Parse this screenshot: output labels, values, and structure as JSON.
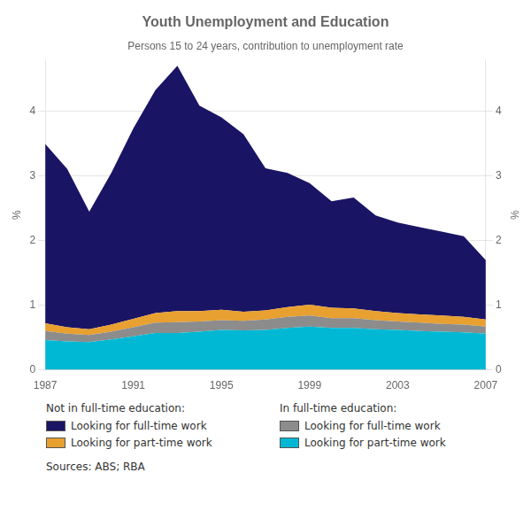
{
  "chart_data": {
    "type": "area",
    "title": "Youth Unemployment and Education",
    "subtitle": "Persons 15 to 24 years, contribution to unemployment rate",
    "ylabel": "%",
    "y2label": "%",
    "source": "Sources: ABS; RBA",
    "x": [
      1987,
      1988,
      1989,
      1990,
      1991,
      1992,
      1993,
      1994,
      1995,
      1996,
      1997,
      1998,
      1999,
      2000,
      2001,
      2002,
      2003,
      2004,
      2005,
      2006,
      2007
    ],
    "xlim": [
      1987,
      2007
    ],
    "xticks": [
      1987,
      1991,
      1995,
      1999,
      2003,
      2007
    ],
    "ylim": [
      0,
      4.8
    ],
    "yticks": [
      0,
      1,
      2,
      3,
      4
    ],
    "y2lim": [
      0,
      4.8
    ],
    "y2ticks": [
      0,
      1,
      2,
      3,
      4
    ],
    "stacked": true,
    "grid": true,
    "legend": "bottom",
    "series": [
      {
        "name": "Looking for part-time work",
        "group": "In full-time education:",
        "color": "#00b8d4",
        "values": [
          0.46,
          0.44,
          0.43,
          0.47,
          0.52,
          0.57,
          0.57,
          0.59,
          0.62,
          0.61,
          0.62,
          0.65,
          0.67,
          0.65,
          0.65,
          0.63,
          0.62,
          0.6,
          0.59,
          0.58,
          0.56
        ]
      },
      {
        "name": "Looking for full-time work",
        "group": "In full-time education:",
        "color": "#8c8c8c",
        "values": [
          0.14,
          0.12,
          0.11,
          0.12,
          0.14,
          0.16,
          0.17,
          0.16,
          0.15,
          0.15,
          0.16,
          0.17,
          0.17,
          0.15,
          0.15,
          0.14,
          0.13,
          0.13,
          0.12,
          0.12,
          0.11
        ]
      },
      {
        "name": "Looking for part-time work",
        "group": "Not in full-time education:",
        "color": "#e8a030",
        "values": [
          0.12,
          0.1,
          0.09,
          0.11,
          0.13,
          0.15,
          0.17,
          0.16,
          0.16,
          0.14,
          0.14,
          0.15,
          0.17,
          0.16,
          0.15,
          0.14,
          0.13,
          0.13,
          0.13,
          0.12,
          0.11
        ]
      },
      {
        "name": "Looking for full-time work",
        "group": "Not in full-time education:",
        "color": "#1a1464",
        "values": [
          2.78,
          2.45,
          1.82,
          2.35,
          2.95,
          3.45,
          3.8,
          3.18,
          2.98,
          2.75,
          2.2,
          2.08,
          1.88,
          1.65,
          1.72,
          1.48,
          1.4,
          1.35,
          1.3,
          1.25,
          0.92
        ]
      }
    ]
  }
}
